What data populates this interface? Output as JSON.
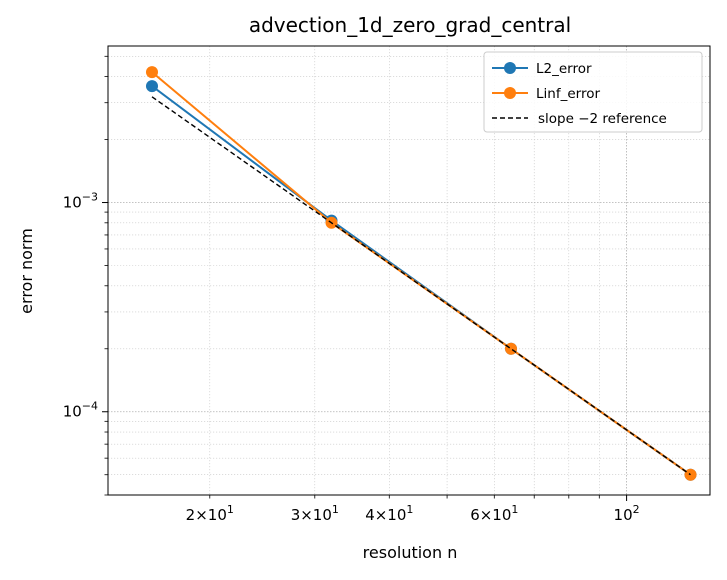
{
  "chart_data": {
    "type": "line",
    "title": "advection_1d_zero_grad_central",
    "xlabel": "resolution n",
    "ylabel": "error norm",
    "xscale": "log",
    "yscale": "log",
    "xlim": [
      13.5,
      138
    ],
    "ylim": [
      4e-05,
      0.0056
    ],
    "grid": true,
    "legend_position": "top-right",
    "x_ticks": [
      {
        "value": 20,
        "mantissa": "2",
        "base": "10",
        "exp": "1"
      },
      {
        "value": 30,
        "mantissa": "3",
        "base": "10",
        "exp": "1"
      },
      {
        "value": 40,
        "mantissa": "4",
        "base": "10",
        "exp": "1"
      },
      {
        "value": 60,
        "mantissa": "6",
        "base": "10",
        "exp": "1"
      },
      {
        "value": 100,
        "mantissa": "",
        "base": "10",
        "exp": "2"
      }
    ],
    "y_ticks": [
      {
        "value": 0.001,
        "base": "10",
        "exp": "−3"
      },
      {
        "value": 0.0001,
        "base": "10",
        "exp": "−4"
      }
    ],
    "x": [
      16,
      32,
      64,
      128
    ],
    "series": [
      {
        "name": "L2_error",
        "color": "#1f77b4",
        "style": "solid",
        "marker": "circle",
        "values": [
          0.0036,
          0.00082,
          0.0002,
          5e-05
        ]
      },
      {
        "name": "Linf_error",
        "color": "#ff7f0e",
        "style": "solid",
        "marker": "circle",
        "values": [
          0.0042,
          0.0008,
          0.0002,
          5e-05
        ]
      },
      {
        "name": "slope −2 reference",
        "color": "#000000",
        "style": "dashed",
        "marker": "none",
        "values": [
          0.0032,
          0.0008,
          0.0002,
          5e-05
        ]
      }
    ]
  }
}
